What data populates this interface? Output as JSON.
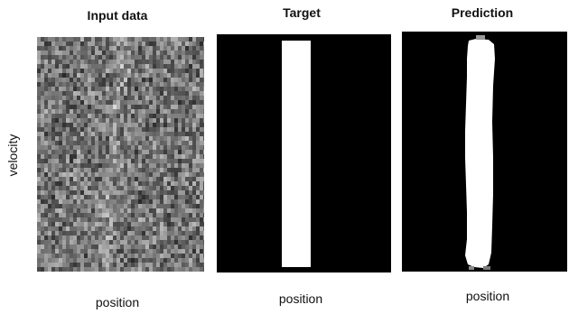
{
  "figure": {
    "ylabel": "velocity",
    "panels": [
      {
        "title": "Input data",
        "xlabel": "position"
      },
      {
        "title": "Target",
        "xlabel": "position"
      },
      {
        "title": "Prediction",
        "xlabel": "position"
      }
    ]
  },
  "colors": {
    "background": "#ffffff",
    "panel_black": "#000000",
    "signal_white": "#ffffff",
    "noise_base": "#7a7a7a"
  }
}
